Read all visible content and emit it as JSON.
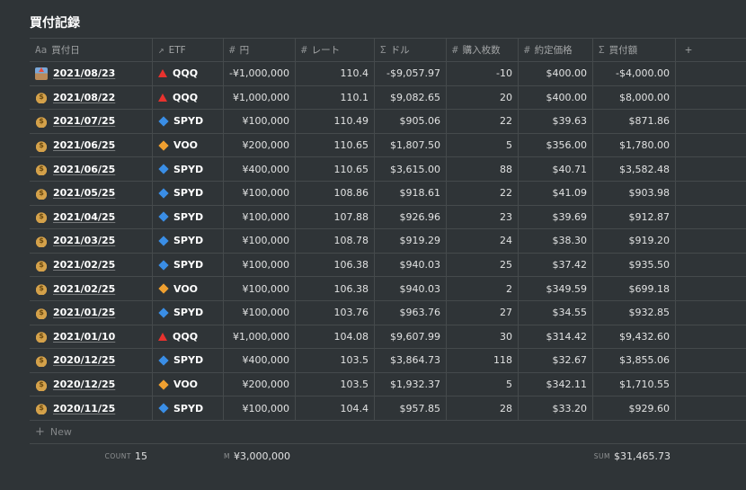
{
  "title": "買付記録",
  "columns": [
    {
      "icon": "Aa",
      "label": "買付日"
    },
    {
      "icon": "↗",
      "label": "ETF"
    },
    {
      "icon": "#",
      "label": "円"
    },
    {
      "icon": "#",
      "label": "レート"
    },
    {
      "icon": "Σ",
      "label": "ドル"
    },
    {
      "icon": "#",
      "label": "購入枚数"
    },
    {
      "icon": "#",
      "label": "約定価格"
    },
    {
      "icon": "Σ",
      "label": "買付額"
    }
  ],
  "add_column_label": "+",
  "rows": [
    {
      "emoji": "outbox",
      "date": "2021/08/23",
      "etf": "QQQ",
      "etf_icon": "red-triangle",
      "yen": "-¥1,000,000",
      "rate": "110.4",
      "usd": "-$9,057.97",
      "shares": "-10",
      "price": "$400.00",
      "amount": "-$4,000.00"
    },
    {
      "emoji": "money-bag",
      "date": "2021/08/22",
      "etf": "QQQ",
      "etf_icon": "red-triangle",
      "yen": "¥1,000,000",
      "rate": "110.1",
      "usd": "$9,082.65",
      "shares": "20",
      "price": "$400.00",
      "amount": "$8,000.00"
    },
    {
      "emoji": "money-bag",
      "date": "2021/07/25",
      "etf": "SPYD",
      "etf_icon": "blue-diamond",
      "yen": "¥100,000",
      "rate": "110.49",
      "usd": "$905.06",
      "shares": "22",
      "price": "$39.63",
      "amount": "$871.86"
    },
    {
      "emoji": "money-bag",
      "date": "2021/06/25",
      "etf": "VOO",
      "etf_icon": "orange-diamond",
      "yen": "¥200,000",
      "rate": "110.65",
      "usd": "$1,807.50",
      "shares": "5",
      "price": "$356.00",
      "amount": "$1,780.00"
    },
    {
      "emoji": "money-bag",
      "date": "2021/06/25",
      "etf": "SPYD",
      "etf_icon": "blue-diamond",
      "yen": "¥400,000",
      "rate": "110.65",
      "usd": "$3,615.00",
      "shares": "88",
      "price": "$40.71",
      "amount": "$3,582.48"
    },
    {
      "emoji": "money-bag",
      "date": "2021/05/25",
      "etf": "SPYD",
      "etf_icon": "blue-diamond",
      "yen": "¥100,000",
      "rate": "108.86",
      "usd": "$918.61",
      "shares": "22",
      "price": "$41.09",
      "amount": "$903.98"
    },
    {
      "emoji": "money-bag",
      "date": "2021/04/25",
      "etf": "SPYD",
      "etf_icon": "blue-diamond",
      "yen": "¥100,000",
      "rate": "107.88",
      "usd": "$926.96",
      "shares": "23",
      "price": "$39.69",
      "amount": "$912.87"
    },
    {
      "emoji": "money-bag",
      "date": "2021/03/25",
      "etf": "SPYD",
      "etf_icon": "blue-diamond",
      "yen": "¥100,000",
      "rate": "108.78",
      "usd": "$919.29",
      "shares": "24",
      "price": "$38.30",
      "amount": "$919.20"
    },
    {
      "emoji": "money-bag",
      "date": "2021/02/25",
      "etf": "SPYD",
      "etf_icon": "blue-diamond",
      "yen": "¥100,000",
      "rate": "106.38",
      "usd": "$940.03",
      "shares": "25",
      "price": "$37.42",
      "amount": "$935.50"
    },
    {
      "emoji": "money-bag",
      "date": "2021/02/25",
      "etf": "VOO",
      "etf_icon": "orange-diamond",
      "yen": "¥100,000",
      "rate": "106.38",
      "usd": "$940.03",
      "shares": "2",
      "price": "$349.59",
      "amount": "$699.18"
    },
    {
      "emoji": "money-bag",
      "date": "2021/01/25",
      "etf": "SPYD",
      "etf_icon": "blue-diamond",
      "yen": "¥100,000",
      "rate": "103.76",
      "usd": "$963.76",
      "shares": "27",
      "price": "$34.55",
      "amount": "$932.85"
    },
    {
      "emoji": "money-bag",
      "date": "2021/01/10",
      "etf": "QQQ",
      "etf_icon": "red-triangle",
      "yen": "¥1,000,000",
      "rate": "104.08",
      "usd": "$9,607.99",
      "shares": "30",
      "price": "$314.42",
      "amount": "$9,432.60"
    },
    {
      "emoji": "money-bag",
      "date": "2020/12/25",
      "etf": "SPYD",
      "etf_icon": "blue-diamond",
      "yen": "¥400,000",
      "rate": "103.5",
      "usd": "$3,864.73",
      "shares": "118",
      "price": "$32.67",
      "amount": "$3,855.06"
    },
    {
      "emoji": "money-bag",
      "date": "2020/12/25",
      "etf": "VOO",
      "etf_icon": "orange-diamond",
      "yen": "¥200,000",
      "rate": "103.5",
      "usd": "$1,932.37",
      "shares": "5",
      "price": "$342.11",
      "amount": "$1,710.55"
    },
    {
      "emoji": "money-bag",
      "date": "2020/11/25",
      "etf": "SPYD",
      "etf_icon": "blue-diamond",
      "yen": "¥100,000",
      "rate": "104.4",
      "usd": "$957.85",
      "shares": "28",
      "price": "$33.20",
      "amount": "$929.60"
    }
  ],
  "new_row_label": "New",
  "footer": {
    "count_label": "COUNT",
    "count_value": "15",
    "yen_label": "M",
    "yen_value": "¥3,000,000",
    "sum_label": "SUM",
    "sum_value": "$31,465.73"
  },
  "colors": {
    "background": "#2f3437",
    "red_triangle": "#e8322e",
    "blue_diamond": "#3a8ee6",
    "orange_diamond": "#f0a030"
  }
}
